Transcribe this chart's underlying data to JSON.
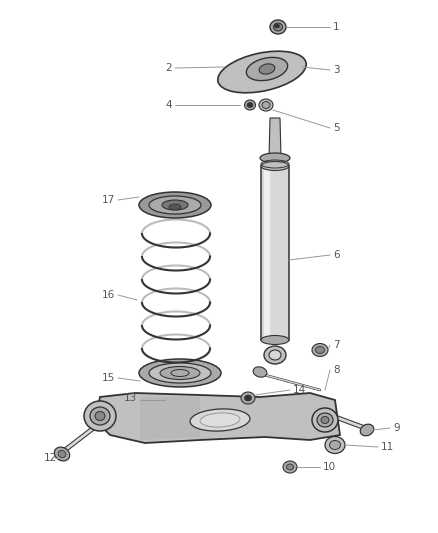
{
  "background_color": "#ffffff",
  "fig_width": 4.38,
  "fig_height": 5.33,
  "dpi": 100,
  "label_color": "#555555",
  "label_fontsize": 7.5,
  "line_color": "#999999",
  "part_color": "#333333",
  "part_fill": "#d8d8d8",
  "part_fill_dark": "#aaaaaa",
  "part_fill_mid": "#c0c0c0"
}
